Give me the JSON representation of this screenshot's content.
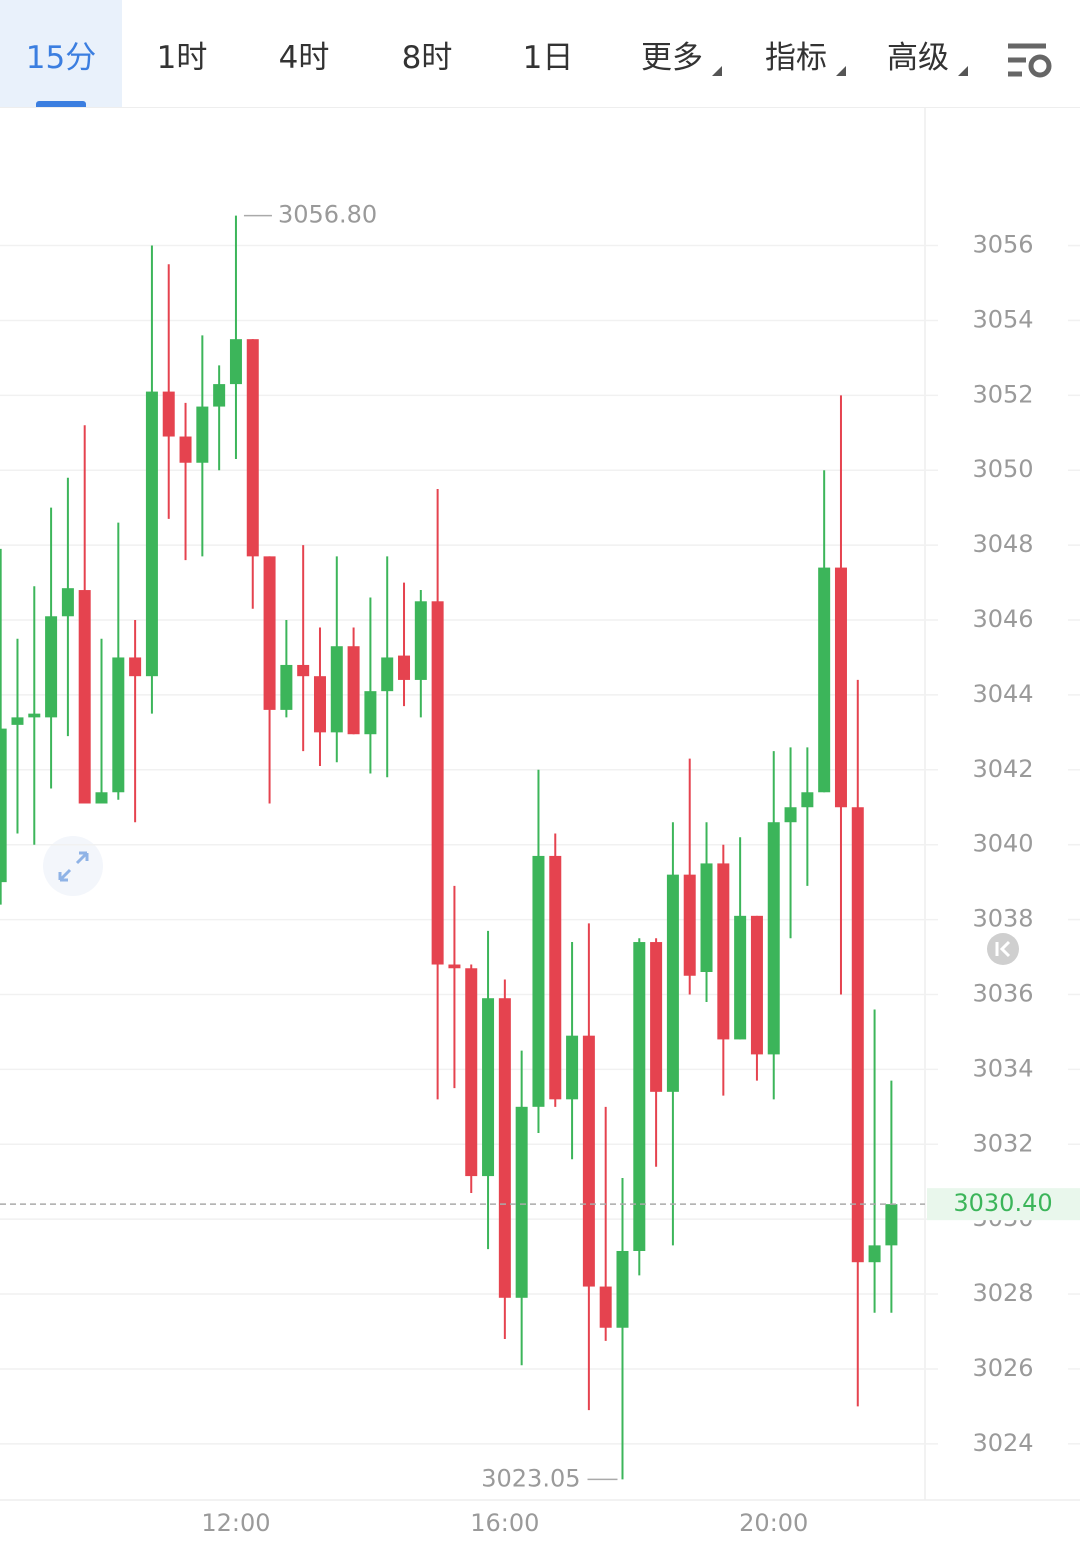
{
  "toolbar": {
    "tabs": [
      "15分",
      "1时",
      "4时",
      "8时",
      "1日",
      "更多",
      "指标",
      "高级"
    ]
  },
  "chart_data": {
    "type": "candlestick",
    "up_color": "#3cb55a",
    "down_color": "#e5434f",
    "grid": true,
    "x": [
      8.5,
      8.75,
      9,
      9.25,
      9.5,
      9.75,
      10,
      10.25,
      10.5,
      10.75,
      11,
      11.25,
      11.5,
      11.75,
      12,
      12.25,
      12.5,
      12.75,
      13,
      13.25,
      13.5,
      13.75,
      14,
      14.25,
      14.5,
      14.75,
      15,
      15.25,
      15.5,
      15.75,
      16,
      16.25,
      16.5,
      16.75,
      17,
      17.25,
      17.5,
      17.75,
      18,
      18.25,
      18.5,
      18.75,
      19,
      19.25,
      19.5,
      19.75,
      20,
      20.25,
      20.5,
      20.75,
      21,
      21.25,
      21.5,
      21.75
    ],
    "open": [
      3039.0,
      3043.2,
      3043.4,
      3043.4,
      3046.1,
      3046.8,
      3041.1,
      3041.4,
      3045.0,
      3044.5,
      3052.1,
      3050.9,
      3050.2,
      3051.7,
      3052.3,
      3053.5,
      3047.7,
      3043.6,
      3044.8,
      3044.5,
      3043.0,
      3045.3,
      3042.95,
      3044.1,
      3045.05,
      3044.4,
      3046.5,
      3036.8,
      3036.7,
      3031.15,
      3035.9,
      3027.9,
      3033.0,
      3039.7,
      3033.2,
      3034.9,
      3028.2,
      3027.1,
      3029.15,
      3037.4,
      3033.4,
      3039.2,
      3036.6,
      3039.5,
      3034.8,
      3038.1,
      3034.4,
      3040.6,
      3041.0,
      3041.4,
      3047.4,
      3041.0,
      3028.85,
      3029.3
    ],
    "high": [
      3047.9,
      3045.5,
      3046.9,
      3049.0,
      3049.8,
      3051.2,
      3045.5,
      3048.6,
      3046.0,
      3056.0,
      3055.5,
      3051.8,
      3053.6,
      3052.8,
      3056.8,
      3053.5,
      3047.7,
      3046.0,
      3048.0,
      3045.8,
      3047.7,
      3045.8,
      3046.6,
      3047.7,
      3047.0,
      3046.8,
      3049.5,
      3038.9,
      3036.8,
      3037.7,
      3036.4,
      3034.5,
      3042.0,
      3040.3,
      3037.4,
      3037.9,
      3033.0,
      3031.1,
      3037.5,
      3037.5,
      3040.6,
      3042.3,
      3040.6,
      3040.0,
      3040.2,
      3038.1,
      3042.5,
      3042.6,
      3042.6,
      3050.0,
      3052.0,
      3044.4,
      3035.6,
      3033.7
    ],
    "low": [
      3038.4,
      3040.3,
      3040.0,
      3041.5,
      3042.9,
      3041.1,
      3041.1,
      3041.2,
      3040.6,
      3043.5,
      3048.7,
      3047.6,
      3047.7,
      3050.0,
      3050.3,
      3046.3,
      3041.1,
      3043.4,
      3042.5,
      3042.1,
      3042.2,
      3042.95,
      3041.9,
      3041.8,
      3043.7,
      3043.4,
      3033.2,
      3033.5,
      3030.7,
      3029.2,
      3026.8,
      3026.1,
      3032.3,
      3033.0,
      3031.6,
      3024.9,
      3026.75,
      3023.05,
      3028.5,
      3031.4,
      3029.3,
      3036.0,
      3035.8,
      3033.3,
      3034.8,
      3033.7,
      3033.2,
      3037.5,
      3038.9,
      3041.4,
      3036.0,
      3025.0,
      3027.5,
      3027.5
    ],
    "close": [
      3043.1,
      3043.4,
      3043.5,
      3046.1,
      3046.85,
      3041.1,
      3041.4,
      3045.0,
      3044.5,
      3052.1,
      3050.9,
      3050.2,
      3051.7,
      3052.3,
      3053.5,
      3047.7,
      3043.6,
      3044.8,
      3044.5,
      3043.0,
      3045.3,
      3042.95,
      3044.1,
      3045.0,
      3044.4,
      3046.5,
      3036.8,
      3036.7,
      3031.15,
      3035.9,
      3027.9,
      3033.0,
      3039.7,
      3033.2,
      3034.9,
      3028.2,
      3027.1,
      3029.15,
      3037.4,
      3033.4,
      3039.2,
      3036.5,
      3039.5,
      3034.8,
      3038.1,
      3034.4,
      3040.6,
      3041.0,
      3041.4,
      3047.4,
      3041.0,
      3028.85,
      3029.3,
      3030.4
    ],
    "xlim": [
      8.49,
      22.25
    ],
    "ylim": [
      3022.5,
      3059.7
    ],
    "xticks": [
      {
        "value": 12,
        "label": "12:00"
      },
      {
        "value": 16,
        "label": "16:00"
      },
      {
        "value": 20,
        "label": "20:00"
      }
    ],
    "yticks": [
      3024,
      3026,
      3028,
      3030,
      3032,
      3034,
      3036,
      3038,
      3040,
      3042,
      3044,
      3046,
      3048,
      3050,
      3052,
      3054,
      3056
    ],
    "max_marker": {
      "x": 12,
      "value": 3056.8,
      "label": "3056.80"
    },
    "min_marker": {
      "x": 17.75,
      "value": 3023.05,
      "label": "3023.05"
    },
    "last_price": {
      "value": 3030.4,
      "label": "3030.40"
    }
  }
}
